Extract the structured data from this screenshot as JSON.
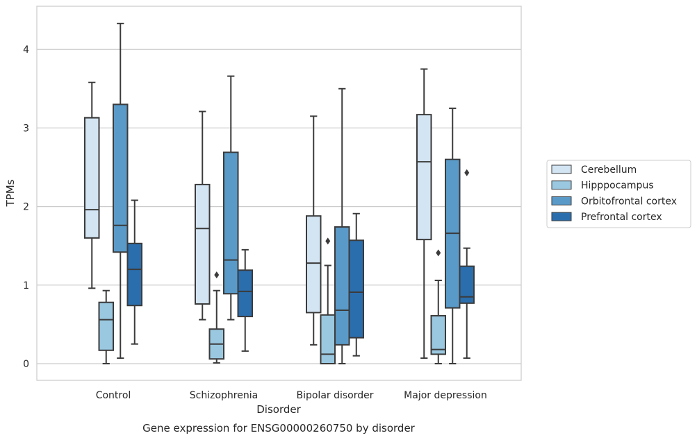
{
  "chart_data": {
    "type": "box",
    "title": "Gene expression for ENSG00000260750 by disorder",
    "xlabel": "Disorder",
    "ylabel": "TPMs",
    "ylim": [
      -0.2,
      4.55
    ],
    "yticks": [
      0,
      1,
      2,
      3,
      4
    ],
    "grid": "y",
    "legend_position": "right",
    "categories": [
      "Control",
      "Schizophrenia",
      "Bipolar disorder",
      "Major depression"
    ],
    "series": [
      {
        "name": "Cerebellum",
        "color": "#d3e4f3",
        "boxes": [
          {
            "whisker_low": 0.96,
            "q1": 1.6,
            "median": 1.96,
            "q3": 3.13,
            "whisker_high": 3.58,
            "outliers": []
          },
          {
            "whisker_low": 0.56,
            "q1": 0.76,
            "median": 1.72,
            "q3": 2.28,
            "whisker_high": 3.21,
            "outliers": []
          },
          {
            "whisker_low": 0.24,
            "q1": 0.65,
            "median": 1.28,
            "q3": 1.88,
            "whisker_high": 3.15,
            "outliers": []
          },
          {
            "whisker_low": 0.07,
            "q1": 1.58,
            "median": 2.57,
            "q3": 3.17,
            "whisker_high": 3.75,
            "outliers": []
          }
        ]
      },
      {
        "name": "Hipppocampus",
        "color": "#9ac8e0",
        "boxes": [
          {
            "whisker_low": 0.0,
            "q1": 0.17,
            "median": 0.56,
            "q3": 0.78,
            "whisker_high": 0.93,
            "outliers": []
          },
          {
            "whisker_low": 0.01,
            "q1": 0.06,
            "median": 0.25,
            "q3": 0.44,
            "whisker_high": 0.93,
            "outliers": [
              1.13
            ]
          },
          {
            "whisker_low": 0.0,
            "q1": 0.0,
            "median": 0.12,
            "q3": 0.62,
            "whisker_high": 1.25,
            "outliers": [
              1.56
            ]
          },
          {
            "whisker_low": 0.0,
            "q1": 0.12,
            "median": 0.18,
            "q3": 0.61,
            "whisker_high": 1.06,
            "outliers": [
              1.41
            ]
          }
        ]
      },
      {
        "name": "Orbitofrontal cortex",
        "color": "#5a9ac8",
        "boxes": [
          {
            "whisker_low": 0.07,
            "q1": 1.42,
            "median": 1.76,
            "q3": 3.3,
            "whisker_high": 4.33,
            "outliers": []
          },
          {
            "whisker_low": 0.56,
            "q1": 0.89,
            "median": 1.32,
            "q3": 2.69,
            "whisker_high": 3.66,
            "outliers": []
          },
          {
            "whisker_low": 0.0,
            "q1": 0.24,
            "median": 0.68,
            "q3": 1.74,
            "whisker_high": 3.5,
            "outliers": []
          },
          {
            "whisker_low": 0.0,
            "q1": 0.71,
            "median": 1.66,
            "q3": 2.6,
            "whisker_high": 3.25,
            "outliers": []
          }
        ]
      },
      {
        "name": "Prefrontal cortex",
        "color": "#2b6ead",
        "boxes": [
          {
            "whisker_low": 0.25,
            "q1": 0.74,
            "median": 1.2,
            "q3": 1.53,
            "whisker_high": 2.08,
            "outliers": []
          },
          {
            "whisker_low": 0.16,
            "q1": 0.6,
            "median": 0.92,
            "q3": 1.19,
            "whisker_high": 1.45,
            "outliers": []
          },
          {
            "whisker_low": 0.1,
            "q1": 0.33,
            "median": 0.91,
            "q3": 1.57,
            "whisker_high": 1.91,
            "outliers": []
          },
          {
            "whisker_low": 0.07,
            "q1": 0.77,
            "median": 0.85,
            "q3": 1.24,
            "whisker_high": 1.47,
            "outliers": [
              2.43
            ]
          }
        ]
      }
    ]
  }
}
